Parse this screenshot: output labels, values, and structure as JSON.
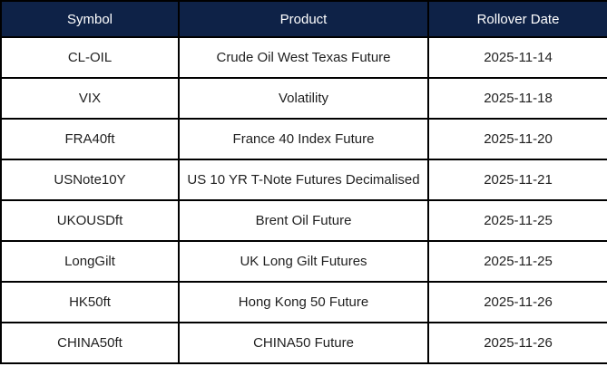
{
  "colors": {
    "header_bg": "#0e2247",
    "header_text": "#ffffff",
    "body_text": "#1f1f1f",
    "border": "#000000",
    "row_bg": "#ffffff"
  },
  "table": {
    "columns": [
      {
        "label": "Symbol"
      },
      {
        "label": "Product"
      },
      {
        "label": "Rollover Date"
      }
    ],
    "rows": [
      {
        "symbol": "CL-OIL",
        "product": "Crude Oil West Texas Future",
        "rollover_date": "2025-11-14"
      },
      {
        "symbol": "VIX",
        "product": "Volatility",
        "rollover_date": "2025-11-18"
      },
      {
        "symbol": "FRA40ft",
        "product": "France 40 Index Future",
        "rollover_date": "2025-11-20"
      },
      {
        "symbol": "USNote10Y",
        "product": "US 10 YR T-Note Futures Decimalised",
        "rollover_date": "2025-11-21"
      },
      {
        "symbol": "UKOUSDft",
        "product": "Brent Oil Future",
        "rollover_date": "2025-11-25"
      },
      {
        "symbol": "LongGilt",
        "product": "UK Long Gilt Futures",
        "rollover_date": "2025-11-25"
      },
      {
        "symbol": "HK50ft",
        "product": "Hong Kong 50 Future",
        "rollover_date": "2025-11-26"
      },
      {
        "symbol": "CHINA50ft",
        "product": "CHINA50 Future",
        "rollover_date": "2025-11-26"
      }
    ]
  }
}
